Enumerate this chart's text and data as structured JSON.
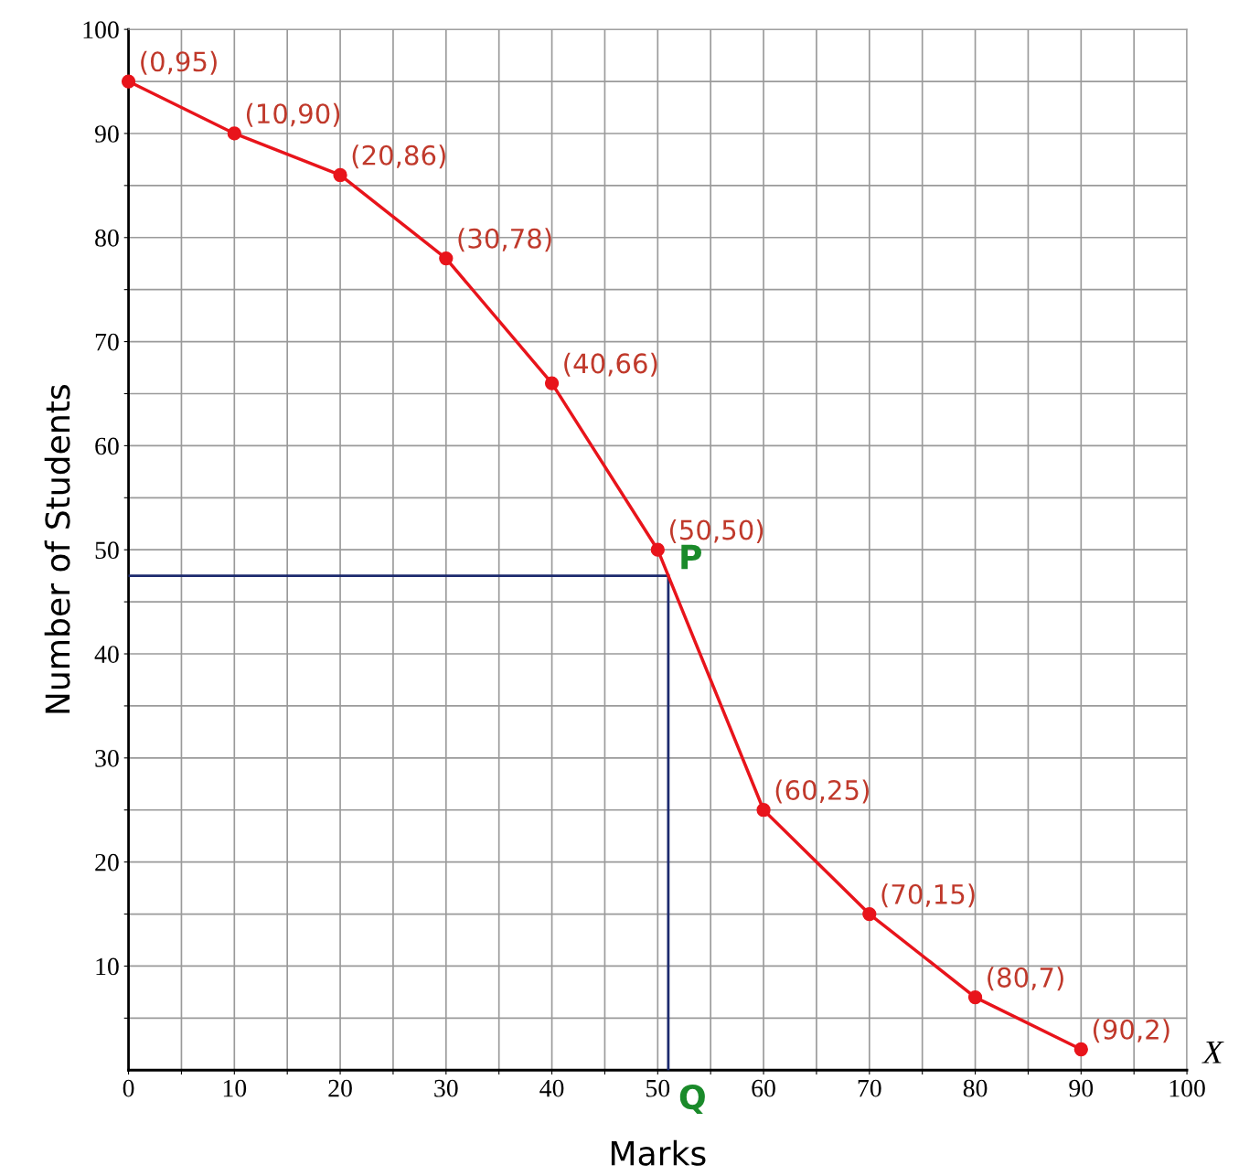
{
  "chart_data": {
    "type": "line",
    "xlabel": "Marks",
    "ylabel": "Number of Students",
    "x": [
      0,
      10,
      20,
      30,
      40,
      50,
      60,
      70,
      80,
      90
    ],
    "series": [
      {
        "color": "#e8141b",
        "values": [
          95,
          90,
          86,
          78,
          66,
          50,
          25,
          15,
          7,
          2
        ]
      }
    ],
    "xlim": [
      0,
      100
    ],
    "ylim": [
      0,
      100
    ],
    "xticks": [
      0,
      {
        "value": 5,
        "label": null
      },
      10,
      {
        "value": 15,
        "label": null
      },
      20,
      {
        "value": 25,
        "label": null
      },
      30,
      {
        "value": 35,
        "label": null
      },
      40,
      {
        "value": 45,
        "label": null
      },
      50,
      {
        "value": 55,
        "label": null
      },
      60,
      {
        "value": 65,
        "label": null
      },
      70,
      {
        "value": 75,
        "label": null
      },
      80,
      {
        "value": 85,
        "label": null
      },
      90,
      {
        "value": 95,
        "label": null
      },
      100
    ],
    "yticks": [
      {
        "value": 5,
        "label": null
      },
      10,
      {
        "value": 15,
        "label": null
      },
      20,
      {
        "value": 25,
        "label": null
      },
      30,
      {
        "value": 35,
        "label": null
      },
      40,
      {
        "value": 45,
        "label": null
      },
      50,
      {
        "value": 55,
        "label": null
      },
      60,
      {
        "value": 65,
        "label": null
      },
      70,
      {
        "value": 75,
        "label": null
      },
      80,
      {
        "value": 85,
        "label": null
      },
      90,
      {
        "value": 95,
        "label": null
      },
      100
    ],
    "grid": true,
    "marker": "circle",
    "line_style": "solid",
    "ref_lines": [
      {
        "axis": "y",
        "value": 47.5,
        "color": "#1c2a6e",
        "line_style": "solid"
      },
      {
        "axis": "x",
        "value": 51,
        "color": "#1c2a6e",
        "line_style": "solid"
      }
    ],
    "annotations": [
      {
        "text": "(0,95)",
        "x": 0,
        "y": 95
      },
      {
        "text": "(10,90)",
        "x": 10,
        "y": 90
      },
      {
        "text": "(20,86)",
        "x": 20,
        "y": 86
      },
      {
        "text": "(30,78)",
        "x": 30,
        "y": 78
      },
      {
        "text": "(40,66)",
        "x": 40,
        "y": 66
      },
      {
        "text": "(50,50)",
        "x": 50,
        "y": 50
      },
      {
        "text": "(60,25)",
        "x": 60,
        "y": 25
      },
      {
        "text": "(70,15)",
        "x": 70,
        "y": 15
      },
      {
        "text": "(80,7)",
        "x": 80,
        "y": 7
      },
      {
        "text": "(90,2)",
        "x": 90,
        "y": 2
      },
      {
        "text": "P",
        "x": 51,
        "y": 47.5
      },
      {
        "text": "Q",
        "x": 51,
        "y": 0
      },
      "X"
    ]
  }
}
